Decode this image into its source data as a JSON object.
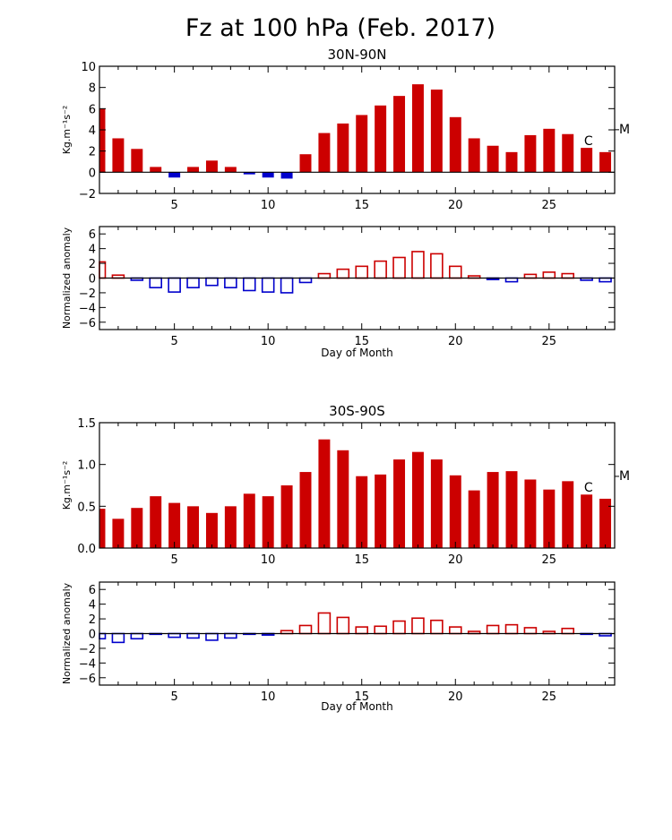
{
  "figure": {
    "title": "Fz at 100 hPa (Feb. 2017)"
  },
  "chart_data": [
    {
      "type": "bar",
      "title": "30N-90N",
      "ylabel": "Kg.m⁻¹s⁻²",
      "xlabel": "",
      "x": [
        1,
        2,
        3,
        4,
        5,
        6,
        7,
        8,
        9,
        10,
        11,
        12,
        13,
        14,
        15,
        16,
        17,
        18,
        19,
        20,
        21,
        22,
        23,
        24,
        25,
        26,
        27,
        28
      ],
      "values": [
        6.0,
        3.2,
        2.2,
        0.5,
        -0.5,
        0.5,
        1.1,
        0.5,
        -0.2,
        -0.5,
        -0.6,
        1.7,
        3.7,
        4.6,
        5.4,
        6.3,
        7.2,
        8.3,
        7.8,
        5.2,
        3.2,
        2.5,
        1.9,
        3.5,
        4.1,
        3.6,
        2.3,
        1.9
      ],
      "xlim": [
        1,
        28.5
      ],
      "ylim": [
        -2,
        10
      ],
      "yticks": [
        -2,
        0,
        2,
        4,
        6,
        8,
        10
      ],
      "xticks": [
        5,
        10,
        15,
        20,
        25
      ],
      "annotations": [
        "C",
        "M"
      ],
      "positive_color": "#cc0000",
      "negative_color": "#0000cc",
      "style": "filled"
    },
    {
      "type": "bar",
      "title": "",
      "ylabel": "Normalized anomaly",
      "xlabel": "Day of Month",
      "x": [
        1,
        2,
        3,
        4,
        5,
        6,
        7,
        8,
        9,
        10,
        11,
        12,
        13,
        14,
        15,
        16,
        17,
        18,
        19,
        20,
        21,
        22,
        23,
        24,
        25,
        26,
        27,
        28
      ],
      "values": [
        2.2,
        0.4,
        -0.3,
        -1.3,
        -1.9,
        -1.3,
        -1.0,
        -1.3,
        -1.7,
        -1.9,
        -2.0,
        -0.6,
        0.6,
        1.2,
        1.6,
        2.3,
        2.8,
        3.6,
        3.3,
        1.6,
        0.3,
        -0.2,
        -0.5,
        0.5,
        0.8,
        0.6,
        -0.3,
        -0.5
      ],
      "xlim": [
        1,
        28.5
      ],
      "ylim": [
        -7,
        7
      ],
      "yticks": [
        -6,
        -4,
        -2,
        0,
        2,
        4,
        6
      ],
      "xticks": [
        5,
        10,
        15,
        20,
        25
      ],
      "positive_color": "#cc0000",
      "negative_color": "#0000cc",
      "style": "outline"
    },
    {
      "type": "bar",
      "title": "30S-90S",
      "ylabel": "Kg.m⁻¹s⁻²",
      "xlabel": "",
      "x": [
        1,
        2,
        3,
        4,
        5,
        6,
        7,
        8,
        9,
        10,
        11,
        12,
        13,
        14,
        15,
        16,
        17,
        18,
        19,
        20,
        21,
        22,
        23,
        24,
        25,
        26,
        27,
        28
      ],
      "values": [
        0.47,
        0.35,
        0.48,
        0.62,
        0.54,
        0.5,
        0.42,
        0.5,
        0.65,
        0.62,
        0.75,
        0.91,
        1.3,
        1.17,
        0.86,
        0.88,
        1.06,
        1.15,
        1.06,
        0.87,
        0.69,
        0.91,
        0.92,
        0.82,
        0.7,
        0.8,
        0.64,
        0.59
      ],
      "xlim": [
        1,
        28.5
      ],
      "ylim": [
        0.0,
        1.5
      ],
      "yticks": [
        0.0,
        0.5,
        1.0,
        1.5
      ],
      "ytick_labels": [
        "0.0",
        "0.5",
        "1.0",
        "1.5"
      ],
      "xticks": [
        5,
        10,
        15,
        20,
        25
      ],
      "annotations": [
        "C",
        "M"
      ],
      "positive_color": "#cc0000",
      "negative_color": "#0000cc",
      "style": "filled"
    },
    {
      "type": "bar",
      "title": "",
      "ylabel": "Normalized anomaly",
      "xlabel": "Day of Month",
      "x": [
        1,
        2,
        3,
        4,
        5,
        6,
        7,
        8,
        9,
        10,
        11,
        12,
        13,
        14,
        15,
        16,
        17,
        18,
        19,
        20,
        21,
        22,
        23,
        24,
        25,
        26,
        27,
        28
      ],
      "values": [
        -0.7,
        -1.2,
        -0.7,
        -0.1,
        -0.5,
        -0.6,
        -0.9,
        -0.6,
        -0.1,
        -0.2,
        0.4,
        1.1,
        2.8,
        2.2,
        0.9,
        1.0,
        1.7,
        2.1,
        1.8,
        0.9,
        0.3,
        1.1,
        1.2,
        0.8,
        0.3,
        0.7,
        -0.1,
        -0.3
      ],
      "xlim": [
        1,
        28.5
      ],
      "ylim": [
        -7,
        7
      ],
      "yticks": [
        -6,
        -4,
        -2,
        0,
        2,
        4,
        6
      ],
      "xticks": [
        5,
        10,
        15,
        20,
        25
      ],
      "positive_color": "#cc0000",
      "negative_color": "#0000cc",
      "style": "outline"
    }
  ]
}
